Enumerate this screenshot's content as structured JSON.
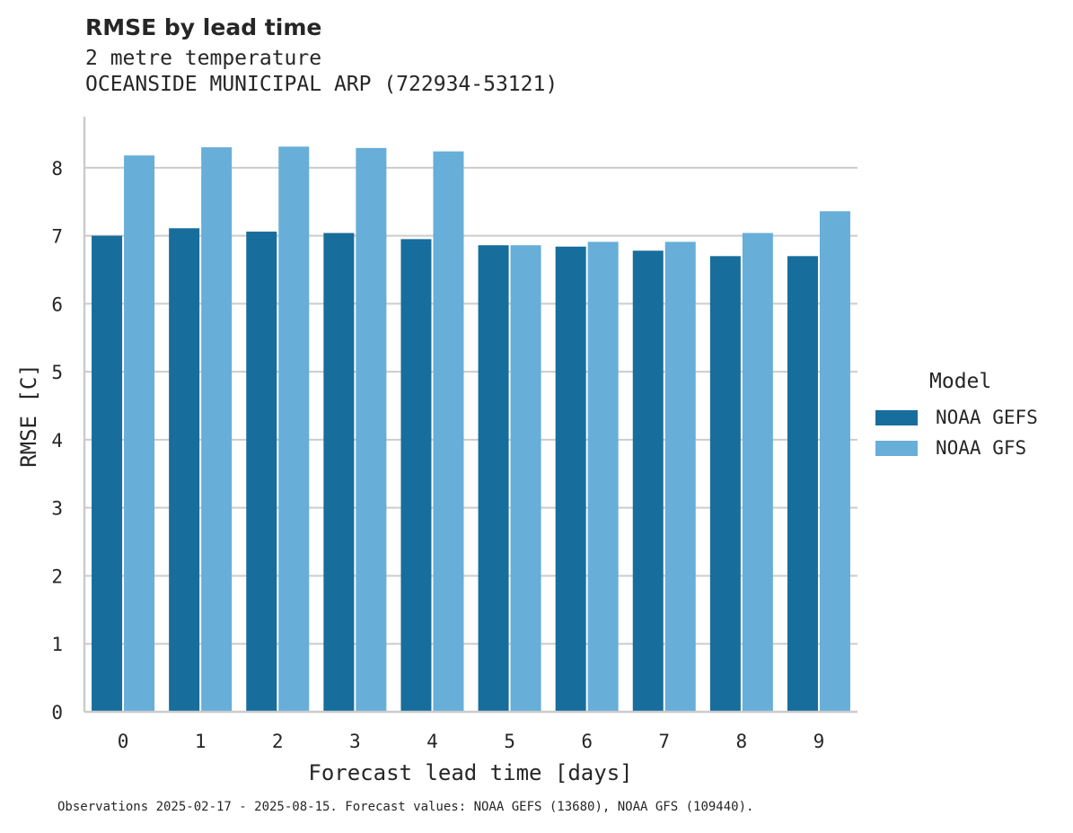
{
  "chart_data": {
    "type": "bar",
    "title": "RMSE by lead time",
    "subtitle_lines": [
      "2 metre temperature",
      "OCEANSIDE MUNICIPAL ARP (722934-53121)"
    ],
    "xlabel": "Forecast lead time [days]",
    "ylabel": "RMSE [C]",
    "categories": [
      "0",
      "1",
      "2",
      "3",
      "4",
      "5",
      "6",
      "7",
      "8",
      "9"
    ],
    "ylim": [
      0,
      8.75
    ],
    "yticks": [
      0,
      1,
      2,
      3,
      4,
      5,
      6,
      7,
      8
    ],
    "grid": "horizontal",
    "legend": {
      "title": "Model",
      "placement": "right"
    },
    "series": [
      {
        "name": "NOAA GEFS",
        "color": "#176d9c",
        "values": [
          7.0,
          7.11,
          7.06,
          7.04,
          6.95,
          6.86,
          6.84,
          6.78,
          6.7,
          6.7
        ]
      },
      {
        "name": "NOAA GFS",
        "color": "#67aed8",
        "values": [
          8.18,
          8.3,
          8.31,
          8.29,
          8.24,
          6.86,
          6.91,
          6.91,
          7.04,
          7.36
        ]
      }
    ],
    "footnote": "Observations 2025-02-17 - 2025-08-15. Forecast values: NOAA GEFS (13680), NOAA GFS (109440)."
  }
}
